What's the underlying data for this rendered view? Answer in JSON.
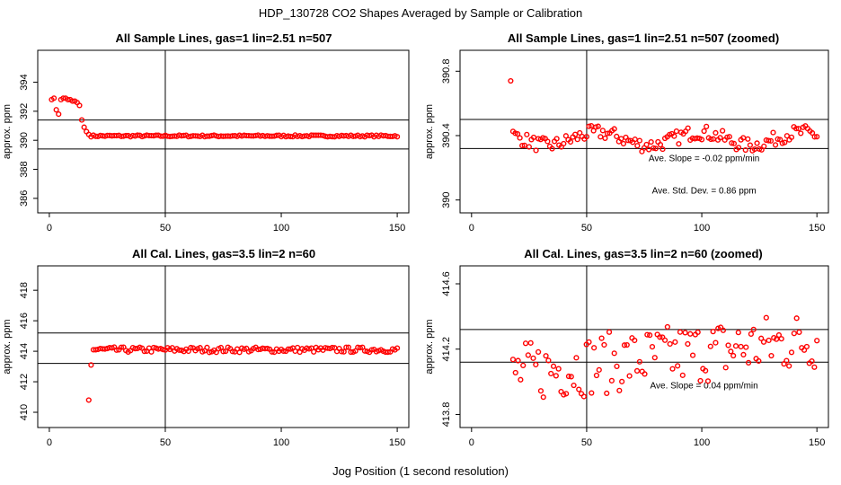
{
  "figure": {
    "title": "HDP_130728  CO2 Shapes Averaged by Sample or Calibration",
    "xlabel": "Jog Position (1 second resolution)"
  },
  "colors": {
    "points": "#ff0000",
    "axes": "#000000",
    "background": "#ffffff"
  },
  "chart_data": [
    {
      "id": "p1",
      "type": "scatter",
      "title": "All Sample Lines, gas=1 lin=2.51 n=507",
      "xlabel": "",
      "ylabel": "approx. ppm",
      "xlim": [
        -5,
        155
      ],
      "ylim": [
        385.0,
        396.2
      ],
      "xticks": [
        0,
        50,
        100,
        150
      ],
      "yticks": [
        386,
        388,
        390,
        392,
        394
      ],
      "vlines": [
        50
      ],
      "hlines": [
        391.4,
        389.4
      ],
      "annotations": [],
      "series": [
        {
          "name": "sample",
          "kind": "p1"
        }
      ]
    },
    {
      "id": "p2",
      "type": "scatter",
      "title": "All Sample Lines, gas=1 lin=2.51 n=507 (zoomed)",
      "xlabel": "",
      "ylabel": "approx. ppm",
      "xlim": [
        -5,
        155
      ],
      "ylim": [
        389.92,
        390.93
      ],
      "xticks": [
        0,
        50,
        100,
        150
      ],
      "yticks": [
        390.0,
        390.4,
        390.8
      ],
      "vlines": [
        50
      ],
      "hlines": [
        390.5,
        390.32
      ],
      "annotations": [
        {
          "text": "Ave. Slope =  -0.02  ppm/min",
          "x": 101,
          "y": 390.24
        },
        {
          "text": "Ave. Std. Dev. =  0.86  ppm",
          "x": 101,
          "y": 390.04
        }
      ],
      "series": [
        {
          "name": "sample zoomed",
          "kind": "p2"
        }
      ]
    },
    {
      "id": "p3",
      "type": "scatter",
      "title": "All Cal. Lines, gas=3.5 lin=2 n=60",
      "xlabel": "",
      "ylabel": "approx. ppm",
      "xlim": [
        -5,
        155
      ],
      "ylim": [
        409.0,
        419.6
      ],
      "xticks": [
        0,
        50,
        100,
        150
      ],
      "yticks": [
        410,
        412,
        414,
        416,
        418
      ],
      "vlines": [
        50
      ],
      "hlines": [
        415.2,
        413.2
      ],
      "annotations": [],
      "series": [
        {
          "name": "cal",
          "kind": "p3"
        }
      ]
    },
    {
      "id": "p4",
      "type": "scatter",
      "title": "All Cal. Lines, gas=3.5 lin=2 n=60 (zoomed)",
      "xlabel": "",
      "ylabel": "approx. ppm",
      "xlim": [
        -5,
        155
      ],
      "ylim": [
        413.72,
        414.71
      ],
      "xticks": [
        0,
        50,
        100,
        150
      ],
      "yticks": [
        413.8,
        414.2,
        414.6
      ],
      "vlines": [
        50
      ],
      "hlines": [
        414.32,
        414.12
      ],
      "annotations": [
        {
          "text": "Ave. Slope =  0.04  ppm/min",
          "x": 101,
          "y": 413.96
        }
      ],
      "series": [
        {
          "name": "cal zoomed",
          "kind": "p4"
        }
      ]
    }
  ]
}
